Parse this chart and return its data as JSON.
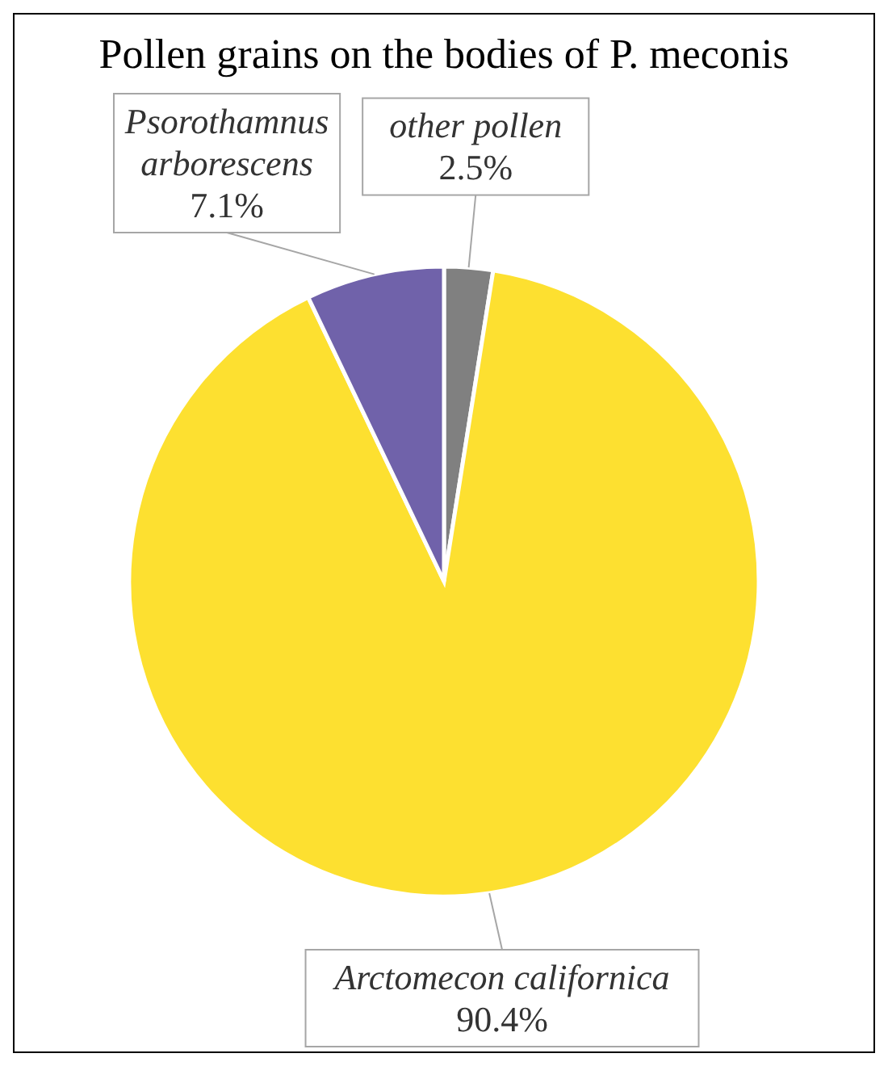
{
  "chart_data": {
    "type": "pie",
    "title": "Pollen grains on the bodies of P. meconis",
    "categories": [
      "other pollen",
      "Arctomecon californica",
      "Psorothamnus arborescens"
    ],
    "values": [
      2.5,
      90.4,
      7.1
    ],
    "colors": [
      "#808080",
      "#fde030",
      "#7062aa"
    ],
    "value_labels": [
      "2.5%",
      "90.4%",
      "7.1%"
    ],
    "legend": false
  }
}
